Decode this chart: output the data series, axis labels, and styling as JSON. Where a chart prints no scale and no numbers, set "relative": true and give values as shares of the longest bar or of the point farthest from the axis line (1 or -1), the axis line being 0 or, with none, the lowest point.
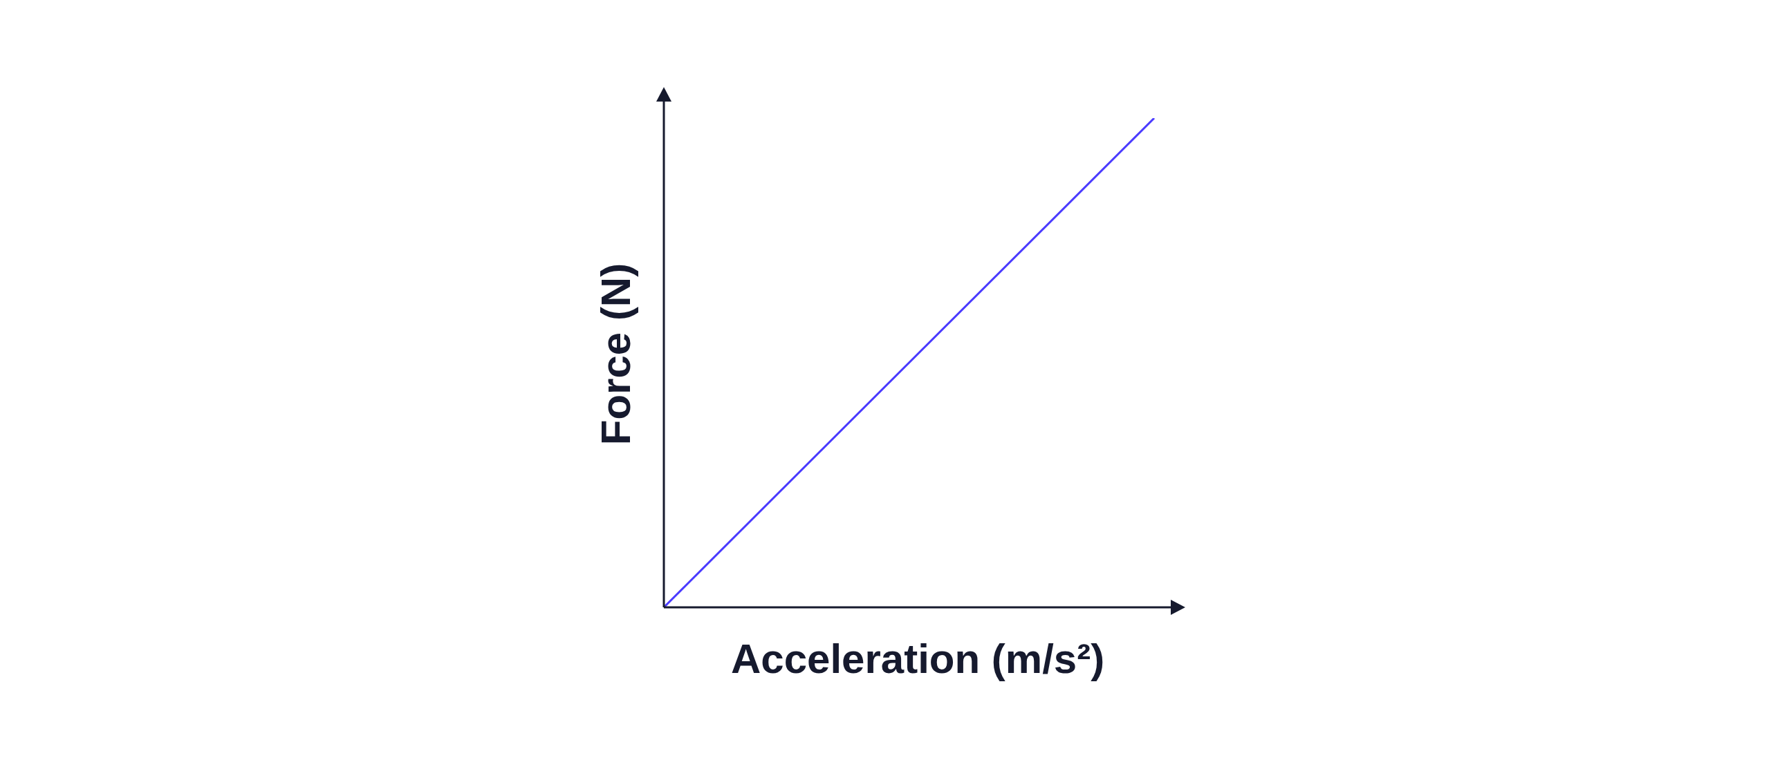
{
  "chart_data": {
    "type": "line",
    "xlabel": "Acceleration (m/s²)",
    "ylabel": "Force (N)",
    "categories": [
      null,
      null
    ],
    "values": [
      0,
      1
    ],
    "color": "#4a3aff",
    "relative": true
  }
}
